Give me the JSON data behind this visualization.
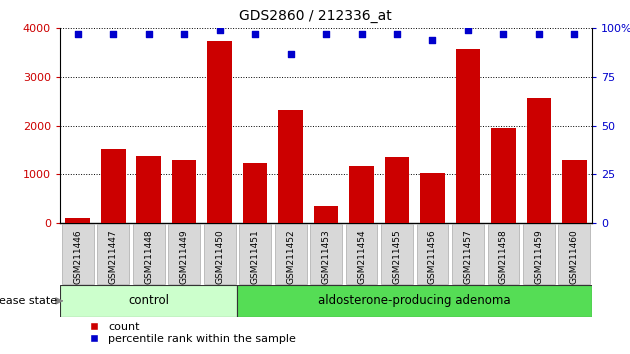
{
  "title": "GDS2860 / 212336_at",
  "categories": [
    "GSM211446",
    "GSM211447",
    "GSM211448",
    "GSM211449",
    "GSM211450",
    "GSM211451",
    "GSM211452",
    "GSM211453",
    "GSM211454",
    "GSM211455",
    "GSM211456",
    "GSM211457",
    "GSM211458",
    "GSM211459",
    "GSM211460"
  ],
  "counts": [
    100,
    1520,
    1380,
    1290,
    3740,
    1240,
    2320,
    350,
    1170,
    1350,
    1020,
    3580,
    1960,
    2570,
    1300
  ],
  "percentiles": [
    97,
    97,
    97,
    97,
    99,
    97,
    87,
    97,
    97,
    97,
    94,
    99,
    97,
    97,
    97
  ],
  "ylim_left": [
    0,
    4000
  ],
  "ylim_right": [
    0,
    100
  ],
  "yticks_left": [
    0,
    1000,
    2000,
    3000,
    4000
  ],
  "yticks_right": [
    0,
    25,
    50,
    75,
    100
  ],
  "bar_color": "#cc0000",
  "dot_color": "#0000cc",
  "control_color": "#ccffcc",
  "adenoma_color": "#55dd55",
  "n_control": 5,
  "n_adenoma": 10,
  "control_label": "control",
  "adenoma_label": "aldosterone-producing adenoma",
  "disease_state_label": "disease state",
  "legend_count_label": "count",
  "legend_percentile_label": "percentile rank within the sample",
  "tick_bg_color": "#d8d8d8",
  "white": "#ffffff"
}
